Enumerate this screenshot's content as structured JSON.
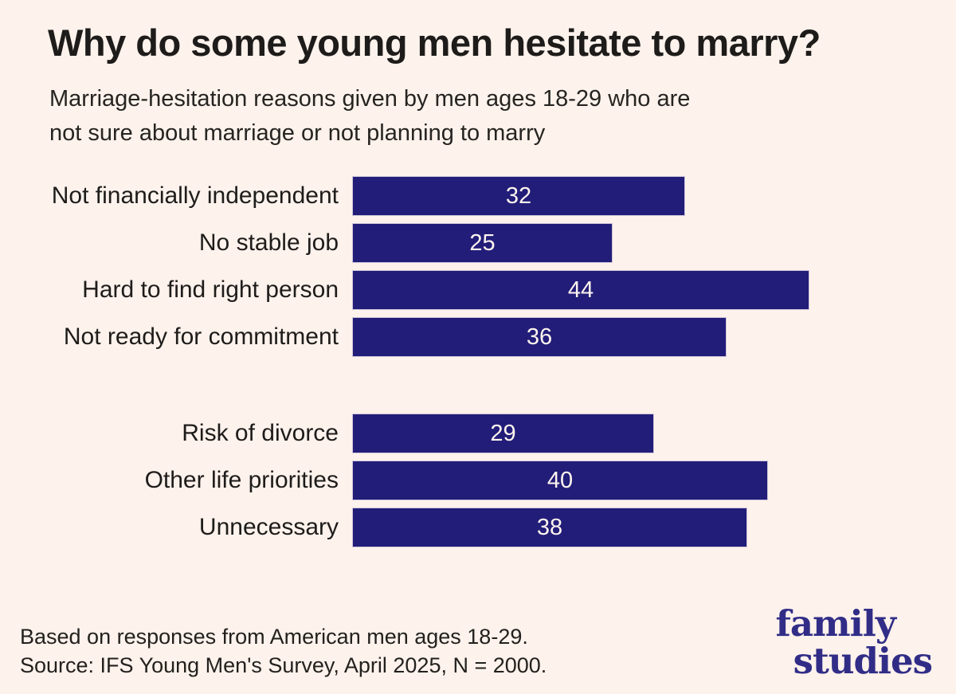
{
  "header": {
    "title": "Why do some young men hesitate to marry?",
    "subtitle_line1": "Marriage-hesitation reasons given by men ages 18-29 who are",
    "subtitle_line2": "not sure about marriage or not planning to marry"
  },
  "chart_data": {
    "type": "bar",
    "orientation": "horizontal",
    "title": "Why do some young men hesitate to marry?",
    "subtitle": "Marriage-hesitation reasons given by men ages 18-29 who are not sure about marriage or not planning to marry",
    "categories": [
      "Not financially independent",
      "No stable job",
      "Hard to find right person",
      "Not ready for commitment",
      "Risk of divorce",
      "Other life priorities",
      "Unnecessary"
    ],
    "values": [
      32,
      25,
      44,
      36,
      29,
      40,
      38
    ],
    "groups": [
      {
        "items": [
          {
            "label": "Not financially independent",
            "value": 32
          },
          {
            "label": "No stable job",
            "value": 25
          },
          {
            "label": "Hard to find right person",
            "value": 44
          },
          {
            "label": "Not ready for commitment",
            "value": 36
          }
        ]
      },
      {
        "items": [
          {
            "label": "Risk of divorce",
            "value": 29
          },
          {
            "label": "Other life priorities",
            "value": 40
          },
          {
            "label": "Unnecessary",
            "value": 38
          }
        ]
      }
    ],
    "value_labels_shown": true,
    "xlim": [
      0,
      44
    ],
    "grid": false,
    "legend": false,
    "bar_color": "#221d78",
    "value_label_color": "#fdf4ee"
  },
  "footer": {
    "note_line1": "Based on responses from American men ages 18-29.",
    "note_line2": "Source: IFS Young Men's Survey, April 2025, N = 2000.",
    "logo_line1": "family",
    "logo_line2": "studies"
  },
  "colors": {
    "background": "#fdf2ec",
    "bar": "#221d78",
    "title_text": "#1e1c1a",
    "logo": "#312d87"
  }
}
